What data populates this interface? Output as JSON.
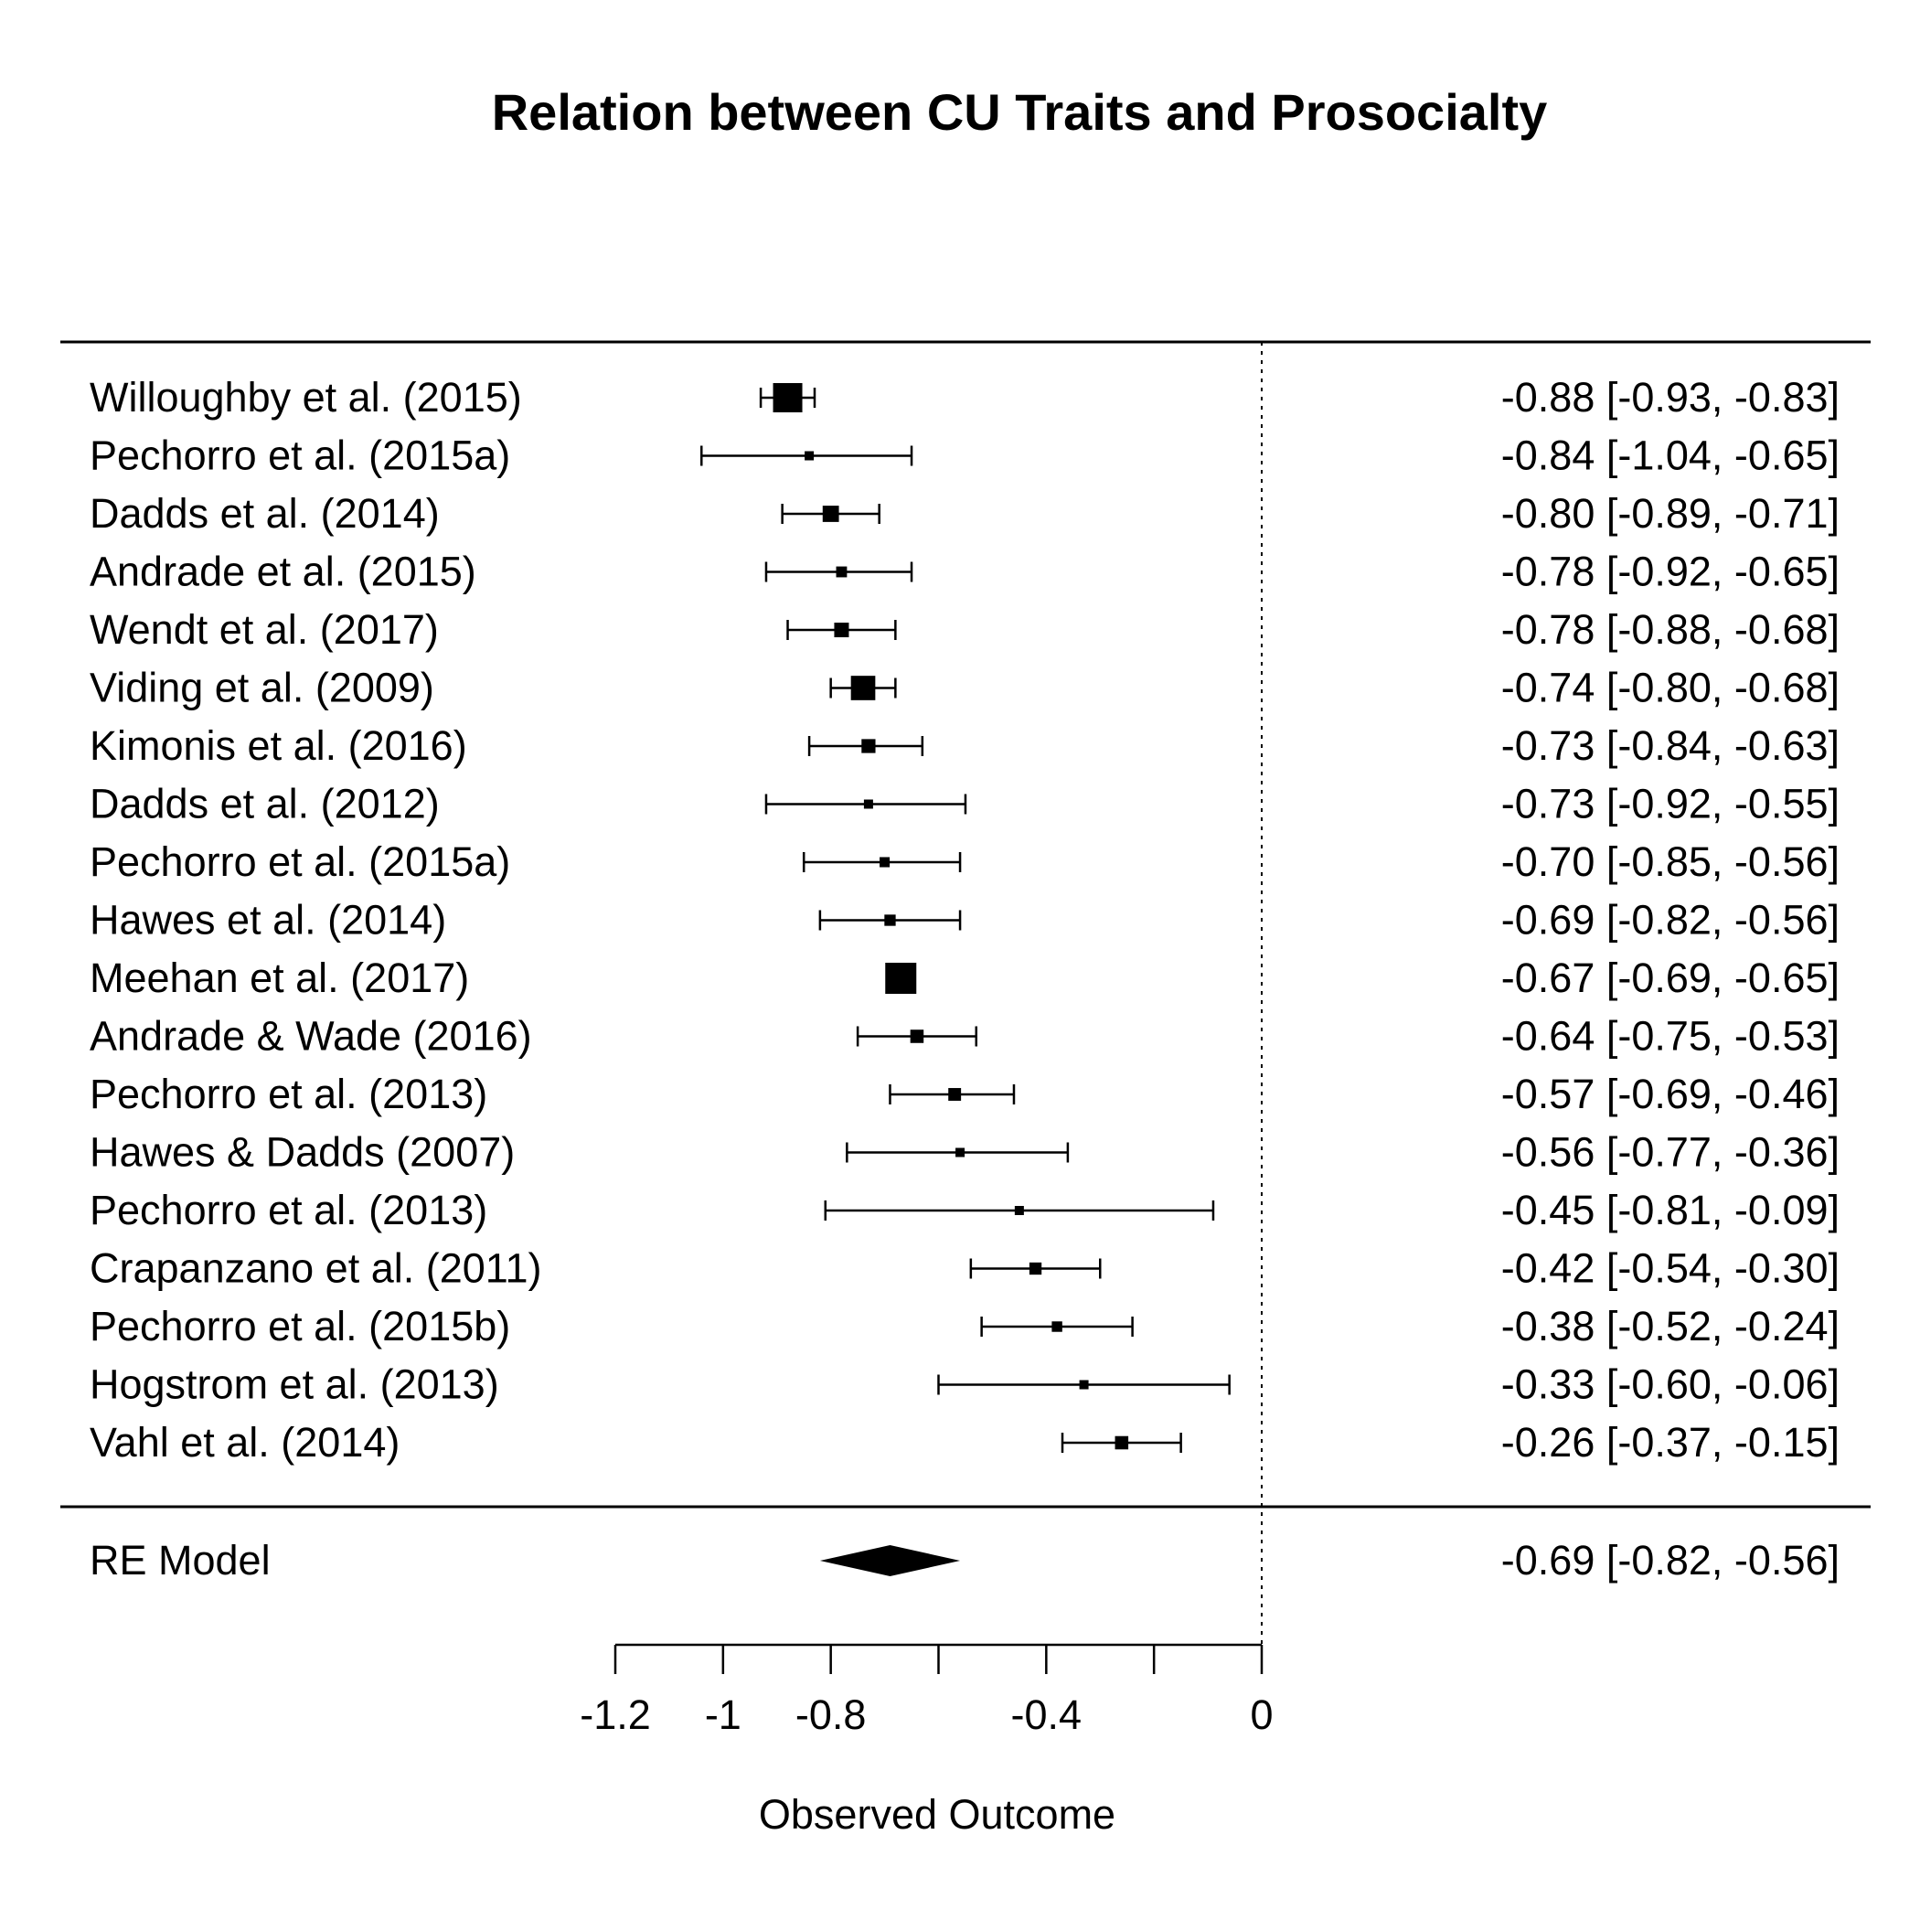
{
  "chart_data": {
    "type": "forest",
    "title": "Relation between CU Traits and Prosocialty",
    "xlabel": "Observed Outcome",
    "xlim": [
      -1.2,
      0
    ],
    "xticks": [
      -1.2,
      -1,
      -0.8,
      -0.6,
      -0.4,
      -0.2,
      0
    ],
    "xtick_labels": [
      "-1.2",
      "-1",
      "-0.8",
      "",
      "-0.4",
      "",
      "0"
    ],
    "reference_line": 0,
    "studies": [
      {
        "label": "Willoughby et al. (2015)",
        "estimate": -0.88,
        "lower": -0.93,
        "upper": -0.83,
        "text": "-0.88 [-0.93, -0.83]"
      },
      {
        "label": "Pechorro et al. (2015a)",
        "estimate": -0.84,
        "lower": -1.04,
        "upper": -0.65,
        "text": "-0.84 [-1.04, -0.65]"
      },
      {
        "label": "Dadds et al. (2014)",
        "estimate": -0.8,
        "lower": -0.89,
        "upper": -0.71,
        "text": "-0.80 [-0.89, -0.71]"
      },
      {
        "label": "Andrade et al. (2015)",
        "estimate": -0.78,
        "lower": -0.92,
        "upper": -0.65,
        "text": "-0.78 [-0.92, -0.65]"
      },
      {
        "label": "Wendt et al. (2017)",
        "estimate": -0.78,
        "lower": -0.88,
        "upper": -0.68,
        "text": "-0.78 [-0.88, -0.68]"
      },
      {
        "label": "Viding et al. (2009)",
        "estimate": -0.74,
        "lower": -0.8,
        "upper": -0.68,
        "text": "-0.74 [-0.80, -0.68]"
      },
      {
        "label": "Kimonis et al. (2016)",
        "estimate": -0.73,
        "lower": -0.84,
        "upper": -0.63,
        "text": "-0.73 [-0.84, -0.63]"
      },
      {
        "label": "Dadds et al. (2012)",
        "estimate": -0.73,
        "lower": -0.92,
        "upper": -0.55,
        "text": "-0.73 [-0.92, -0.55]"
      },
      {
        "label": "Pechorro et al. (2015a)",
        "estimate": -0.7,
        "lower": -0.85,
        "upper": -0.56,
        "text": "-0.70 [-0.85, -0.56]"
      },
      {
        "label": "Hawes et al. (2014)",
        "estimate": -0.69,
        "lower": -0.82,
        "upper": -0.56,
        "text": "-0.69 [-0.82, -0.56]"
      },
      {
        "label": "Meehan et al. (2017)",
        "estimate": -0.67,
        "lower": -0.69,
        "upper": -0.65,
        "text": "-0.67 [-0.69, -0.65]"
      },
      {
        "label": "Andrade & Wade (2016)",
        "estimate": -0.64,
        "lower": -0.75,
        "upper": -0.53,
        "text": "-0.64 [-0.75, -0.53]"
      },
      {
        "label": "Pechorro et al. (2013)",
        "estimate": -0.57,
        "lower": -0.69,
        "upper": -0.46,
        "text": "-0.57 [-0.69, -0.46]"
      },
      {
        "label": "Hawes & Dadds (2007)",
        "estimate": -0.56,
        "lower": -0.77,
        "upper": -0.36,
        "text": "-0.56 [-0.77, -0.36]"
      },
      {
        "label": "Pechorro et al. (2013)",
        "estimate": -0.45,
        "lower": -0.81,
        "upper": -0.09,
        "text": "-0.45 [-0.81, -0.09]"
      },
      {
        "label": "Crapanzano et al. (2011)",
        "estimate": -0.42,
        "lower": -0.54,
        "upper": -0.3,
        "text": "-0.42 [-0.54, -0.30]"
      },
      {
        "label": "Pechorro et al. (2015b)",
        "estimate": -0.38,
        "lower": -0.52,
        "upper": -0.24,
        "text": "-0.38 [-0.52, -0.24]"
      },
      {
        "label": "Hogstrom et al. (2013)",
        "estimate": -0.33,
        "lower": -0.6,
        "upper": -0.06,
        "text": "-0.33 [-0.60, -0.06]"
      },
      {
        "label": "Vahl et al. (2014)",
        "estimate": -0.26,
        "lower": -0.37,
        "upper": -0.15,
        "text": "-0.26 [-0.37, -0.15]"
      }
    ],
    "summary": {
      "label": "RE Model",
      "estimate": -0.69,
      "lower": -0.82,
      "upper": -0.56,
      "text": "-0.69 [-0.82, -0.56]"
    }
  }
}
